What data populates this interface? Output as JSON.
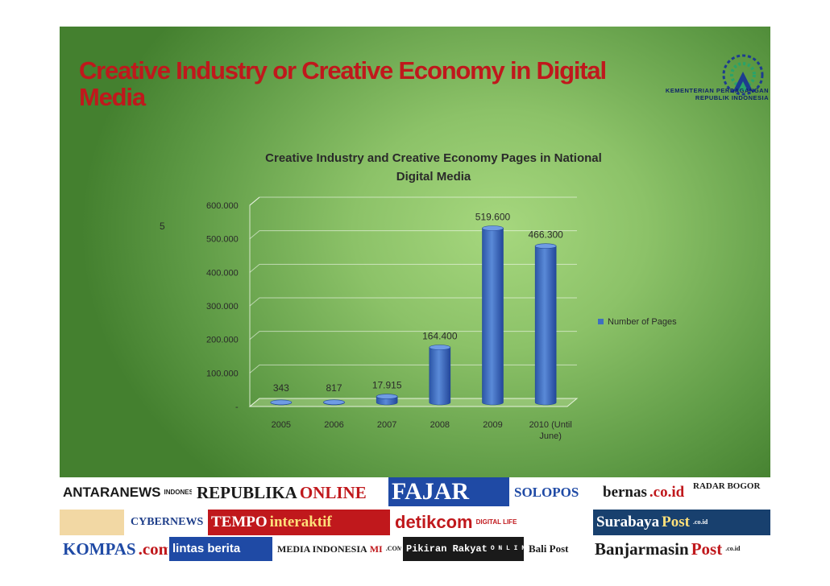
{
  "slide": {
    "title": "Creative Industry or Creative Economy in Digital Media",
    "ministry_caption": "KEMENTERIAN PERDAGANGAN REPUBLIK INDONESIA",
    "stray_label": "5"
  },
  "colors": {
    "title": "#c0181c",
    "bar": "#3f6fc0",
    "bar_dark": "#24489a",
    "gridline": "#ffffff",
    "chart_text": "#2a2a2a"
  },
  "chart_data": {
    "type": "bar",
    "title": "Creative Industry and Creative Economy Pages in National Digital Media",
    "categories": [
      "2005",
      "2006",
      "2007",
      "2008",
      "2009",
      "2010 (Until June)"
    ],
    "series": [
      {
        "name": "Number of Pages",
        "values": [
          343,
          817,
          17915,
          164400,
          519600,
          466300
        ]
      }
    ],
    "data_labels": [
      "343",
      "817",
      "17.915",
      "164.400",
      "519.600",
      "466.300"
    ],
    "y_ticks": [
      0,
      100000,
      200000,
      300000,
      400000,
      500000,
      600000
    ],
    "y_tick_labels": [
      "-",
      "100.000",
      "200.000",
      "300.000",
      "400.000",
      "500.000",
      "600.000"
    ],
    "ylim": [
      0,
      600000
    ],
    "xlabel": "",
    "ylabel": "",
    "grid": true,
    "three_d": true,
    "legend_position": "right"
  },
  "media_logos": [
    {
      "icon": "antara-icon",
      "text": "ANTARANEWS",
      "sub": "INDONESIA, ONE CLICK AWAY!"
    },
    {
      "icon": "republika-icon",
      "text": "REPUBLIKA",
      "accent": "ONLINE"
    },
    {
      "icon": "fajar-icon",
      "text": "FAJAR"
    },
    {
      "icon": "solopos-icon",
      "text": "SOLOPOS"
    },
    {
      "icon": "bernas-icon",
      "text": "bernas",
      "accent": ".co.id"
    },
    {
      "icon": "radar-bogor-icon",
      "text": "RADAR BOGOR"
    },
    {
      "icon": "banjarbaru-icon",
      "text": ""
    },
    {
      "icon": "cybernews-icon",
      "text": "CYBERNEWS"
    },
    {
      "icon": "tempo-icon",
      "text": "TEMPO",
      "accent": "interaktif"
    },
    {
      "icon": "detikcom-icon",
      "text": "detikcom",
      "sub": "DIGITAL LIFE"
    },
    {
      "icon": "surabaya-post-icon",
      "text": "Surabaya",
      "accent": "Post",
      "sub": ".co.id"
    },
    {
      "icon": "kompas-icon",
      "text": "KOMPAS",
      "accent": ".com"
    },
    {
      "icon": "lintas-berita-icon",
      "text": "lintas berita"
    },
    {
      "icon": "media-indonesia-icon",
      "text": "MEDIA INDONESIA",
      "accent": "MI",
      "sub": ".COM"
    },
    {
      "icon": "pikiran-rakyat-icon",
      "text": "Pikiran Rakyat",
      "sub": "O N L I N E"
    },
    {
      "icon": "bali-post-icon",
      "text": "Bali Post"
    },
    {
      "icon": "banjarmasin-post-icon",
      "text": "Banjarmasin",
      "accent": "Post",
      "sub": ".co.id"
    }
  ]
}
